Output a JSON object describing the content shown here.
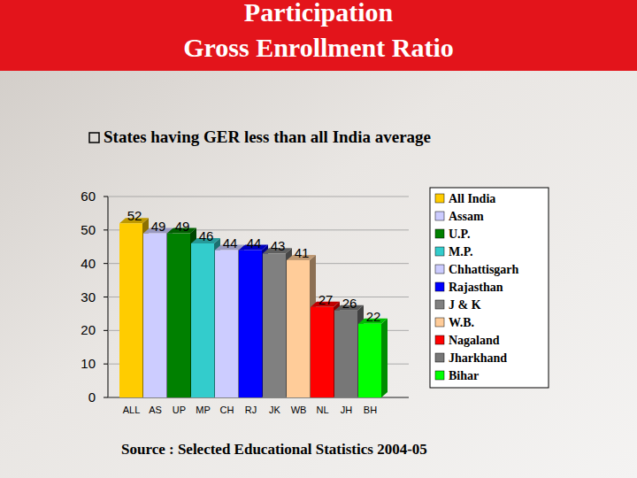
{
  "chart_data": {
    "type": "bar",
    "title": "Participation",
    "subtitle": "Gross Enrollment Ratio",
    "annotations": [
      "States having GER less than all India average",
      "Source : Selected Educational Statistics 2004-05"
    ],
    "categories": [
      "ALL",
      "AS",
      "UP",
      "MP",
      "CH",
      "RJ",
      "JK",
      "WB",
      "NL",
      "JH",
      "BH"
    ],
    "series": [
      {
        "name": "All India",
        "color": "#ffcc00",
        "values": [
          52,
          null,
          null,
          null,
          null,
          null,
          null,
          null,
          null,
          null,
          null
        ]
      },
      {
        "name": "Assam",
        "color": "#ccccff",
        "values": [
          null,
          49,
          null,
          null,
          null,
          null,
          null,
          null,
          null,
          null,
          null
        ]
      },
      {
        "name": "U.P.",
        "color": "#008000",
        "values": [
          null,
          null,
          49,
          null,
          null,
          null,
          null,
          null,
          null,
          null,
          null
        ]
      },
      {
        "name": "M.P.",
        "color": "#33cccc",
        "values": [
          null,
          null,
          null,
          46,
          null,
          null,
          null,
          null,
          null,
          null,
          null
        ]
      },
      {
        "name": "Chhattisgarh",
        "color": "#ccccff",
        "values": [
          null,
          null,
          null,
          null,
          44,
          null,
          null,
          null,
          null,
          null,
          null
        ]
      },
      {
        "name": "Rajasthan",
        "color": "#0000ff",
        "values": [
          null,
          null,
          null,
          null,
          null,
          44,
          null,
          null,
          null,
          null,
          null
        ]
      },
      {
        "name": "J & K",
        "color": "#808080",
        "values": [
          null,
          null,
          null,
          null,
          null,
          null,
          43,
          null,
          null,
          null,
          null
        ]
      },
      {
        "name": "W.B.",
        "color": "#ffcc99",
        "values": [
          null,
          null,
          null,
          null,
          null,
          null,
          null,
          41,
          null,
          null,
          null
        ]
      },
      {
        "name": "Nagaland",
        "color": "#ff0000",
        "values": [
          null,
          null,
          null,
          null,
          null,
          null,
          null,
          null,
          27,
          null,
          null
        ]
      },
      {
        "name": "Jharkhand",
        "color": "#777777",
        "values": [
          null,
          null,
          null,
          null,
          null,
          null,
          null,
          null,
          null,
          26,
          null
        ]
      },
      {
        "name": "Bihar",
        "color": "#00ff00",
        "values": [
          null,
          null,
          null,
          null,
          null,
          null,
          null,
          null,
          null,
          null,
          22
        ]
      }
    ],
    "ylim": [
      0,
      60
    ],
    "yticks": [
      0,
      10,
      20,
      30,
      40,
      50,
      60
    ],
    "grid": true,
    "data_labels": true,
    "legend": "right"
  }
}
